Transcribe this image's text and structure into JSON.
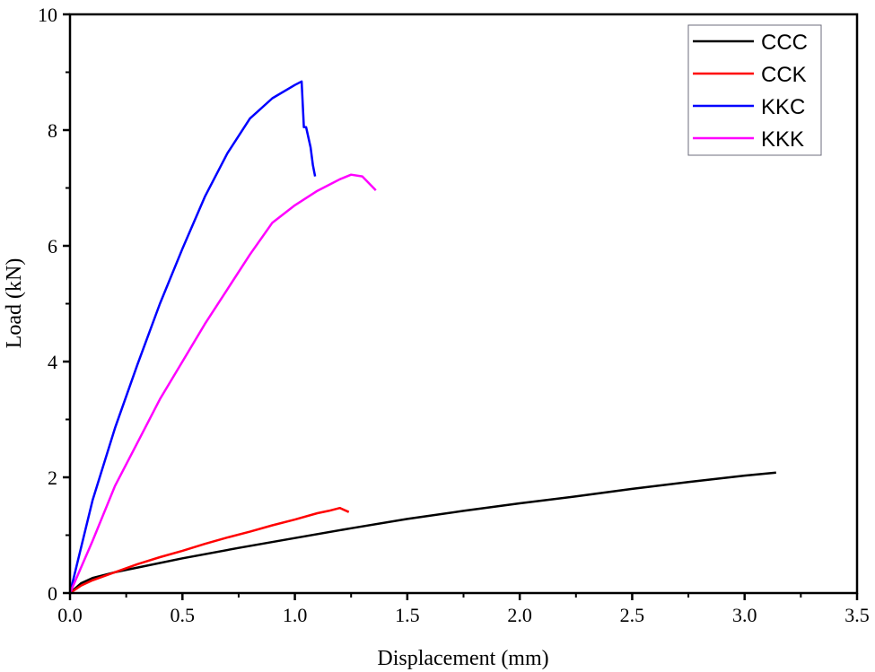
{
  "chart_data": {
    "type": "line",
    "title": "",
    "xlabel": "Displacement (mm)",
    "ylabel": "Load (kN)",
    "xlim": [
      0.0,
      3.5
    ],
    "ylim": [
      0,
      10
    ],
    "x_ticks": [
      "0.0",
      "0.5",
      "1.0",
      "1.5",
      "2.0",
      "2.5",
      "3.0",
      "3.5"
    ],
    "y_ticks": [
      "0",
      "2",
      "4",
      "6",
      "8",
      "10"
    ],
    "grid": false,
    "legend_position": "upper right",
    "series": [
      {
        "name": "CCC",
        "color": "#000000",
        "x": [
          0.0,
          0.05,
          0.1,
          0.2,
          0.3,
          0.5,
          0.75,
          1.0,
          1.25,
          1.5,
          1.75,
          2.0,
          2.25,
          2.5,
          2.75,
          3.0,
          3.14
        ],
        "y": [
          0.0,
          0.17,
          0.26,
          0.36,
          0.44,
          0.6,
          0.78,
          0.95,
          1.12,
          1.28,
          1.42,
          1.55,
          1.67,
          1.8,
          1.92,
          2.03,
          2.08
        ]
      },
      {
        "name": "CCK",
        "color": "#ff0000",
        "x": [
          0.0,
          0.05,
          0.1,
          0.2,
          0.3,
          0.4,
          0.5,
          0.6,
          0.7,
          0.8,
          0.9,
          1.0,
          1.1,
          1.15,
          1.2,
          1.24
        ],
        "y": [
          0.0,
          0.13,
          0.22,
          0.36,
          0.5,
          0.62,
          0.73,
          0.85,
          0.96,
          1.06,
          1.17,
          1.27,
          1.38,
          1.42,
          1.47,
          1.4
        ]
      },
      {
        "name": "KKC",
        "color": "#0000ff",
        "x": [
          0.0,
          0.1,
          0.2,
          0.3,
          0.4,
          0.5,
          0.6,
          0.7,
          0.8,
          0.9,
          1.0,
          1.03,
          1.04,
          1.05,
          1.07,
          1.08,
          1.09
        ],
        "y": [
          0.0,
          1.6,
          2.85,
          3.95,
          5.0,
          5.95,
          6.85,
          7.6,
          8.2,
          8.55,
          8.78,
          8.84,
          8.05,
          8.05,
          7.7,
          7.4,
          7.2
        ]
      },
      {
        "name": "KKK",
        "color": "#ff00ff",
        "x": [
          0.0,
          0.1,
          0.2,
          0.3,
          0.4,
          0.5,
          0.6,
          0.7,
          0.8,
          0.9,
          1.0,
          1.1,
          1.15,
          1.2,
          1.25,
          1.3,
          1.36
        ],
        "y": [
          0.0,
          0.9,
          1.85,
          2.6,
          3.35,
          4.0,
          4.65,
          5.25,
          5.85,
          6.4,
          6.7,
          6.95,
          7.05,
          7.15,
          7.23,
          7.2,
          6.96
        ]
      }
    ]
  }
}
